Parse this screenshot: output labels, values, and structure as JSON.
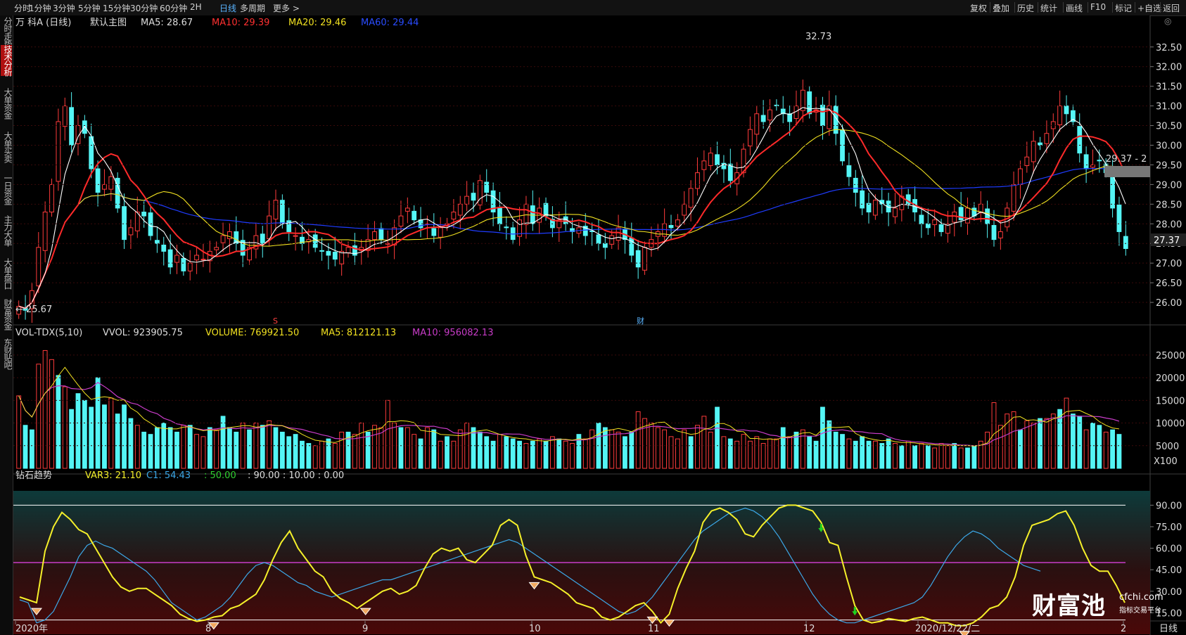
{
  "toolbar": {
    "left_items": [
      "分时",
      "1分钟",
      "3分钟",
      "5分钟",
      "15分钟",
      "30分钟",
      "60分钟",
      "2H",
      "日线",
      "多周期",
      "更多 >"
    ],
    "active": "日线",
    "right_items": [
      "复权",
      "叠加",
      "历史",
      "统计",
      "画线",
      "F10",
      "标记",
      "+自选",
      "返回"
    ]
  },
  "sidebar": [
    "分时走势",
    "技术分析",
    "大单资金",
    "大单买卖",
    "一日资金",
    "主力大单",
    "大单盘口",
    "财富资金",
    "东财贴吧"
  ],
  "sidebar_active": "技术分析",
  "main_header": {
    "stock": "万 科A (日线)",
    "template": "默认主图",
    "ma5": "MA5: 28.67",
    "ma10": "MA10: 29.39",
    "ma20": "MA20: 29.46",
    "ma60": "MA60: 29.44"
  },
  "price_annotations": {
    "high": "32.73",
    "low": "25.67",
    "current": "27.37",
    "range_label": "29.37 - 2",
    "event_s": "S",
    "event_cai": "财"
  },
  "price_axis": [
    "32.50",
    "32.00",
    "31.50",
    "31.00",
    "30.50",
    "30.00",
    "29.50",
    "29.00",
    "28.50",
    "28.00",
    "27.50",
    "27.00",
    "26.50",
    "26.00"
  ],
  "vol_header": {
    "name": "VOL-TDX(5,10)",
    "vvol": "VVOL: 923905.75",
    "volume": "VOLUME: 769921.50",
    "ma5": "MA5: 812121.13",
    "ma10": "MA10: 956082.13"
  },
  "vol_axis": [
    "25000",
    "20000",
    "15000",
    "10000",
    "5000"
  ],
  "vol_unit": "X100",
  "ind_header": {
    "name": "钻石趋势",
    "var3": "VAR3: 21.10",
    "c1": "C1: 54.43",
    "rest_green": ": 50.00",
    "rest_white": ": 90.00 : 10.00 : 0.00"
  },
  "ind_axis": [
    "90.00",
    "75.00",
    "60.00",
    "45.00",
    "30.00",
    "15.00"
  ],
  "date_axis": [
    "2020年",
    "8",
    "9",
    "10",
    "11",
    "12",
    "2020/12/22/二",
    "2"
  ],
  "date_axis_right": "日线",
  "logo": {
    "brand": "财富池",
    "domain": "cfchi.com",
    "tagline": "指标交易平台"
  },
  "colors": {
    "up": "#ff3b3b",
    "down": "#54f5f5",
    "ma5": "#ffffff",
    "ma10": "#ff2a2a",
    "ma20": "#f0e020",
    "ma60": "#1f3cff",
    "var3": "#f5f02a",
    "c1": "#3ca8e8",
    "vol_ma10": "#c83cc8"
  },
  "chart_data": [
    {
      "type": "candlestick",
      "title": "万 科A (日线)",
      "y_range": [
        25.5,
        32.8
      ],
      "highest": 32.73,
      "lowest": 25.67,
      "last_close": 27.37,
      "overlays": [
        "MA5",
        "MA10",
        "MA20",
        "MA60"
      ],
      "closes": [
        25.9,
        25.8,
        26.3,
        27.4,
        28.3,
        29.0,
        30.6,
        31.0,
        30.0,
        30.5,
        30.3,
        29.4,
        28.8,
        29.0,
        29.2,
        28.4,
        27.6,
        27.9,
        28.3,
        28.2,
        27.7,
        27.5,
        27.3,
        26.9,
        27.2,
        26.8,
        27.0,
        27.2,
        27.1,
        27.3,
        27.4,
        27.7,
        27.8,
        27.5,
        27.2,
        27.4,
        27.7,
        27.5,
        28.2,
        28.6,
        28.0,
        27.8,
        27.7,
        27.5,
        27.6,
        27.4,
        27.3,
        27.2,
        27.1,
        27.3,
        27.4,
        27.2,
        27.4,
        27.6,
        27.8,
        27.6,
        27.5,
        27.9,
        28.2,
        28.4,
        28.1,
        27.9,
        28.0,
        27.7,
        27.9,
        28.0,
        28.3,
        28.5,
        28.7,
        28.6,
        29.1,
        28.8,
        28.3,
        28.0,
        27.9,
        27.6,
        28.1,
        28.5,
        28.0,
        28.4,
        28.2,
        27.9,
        28.1,
        28.0,
        27.8,
        27.9,
        27.7,
        27.8,
        27.5,
        27.4,
        27.7,
        27.9,
        27.6,
        27.2,
        26.9,
        27.4,
        27.6,
        27.8,
        28.0,
        27.9,
        28.1,
        28.5,
        28.9,
        29.3,
        29.6,
        29.8,
        29.5,
        29.4,
        29.1,
        29.3,
        29.9,
        30.4,
        30.8,
        30.6,
        30.9,
        31.0,
        30.8,
        30.6,
        31.0,
        31.4,
        30.8,
        30.9,
        30.5,
        31.0,
        30.3,
        29.6,
        29.2,
        28.8,
        28.4,
        28.3,
        28.6,
        28.5,
        28.3,
        28.4,
        28.7,
        28.5,
        28.3,
        28.0,
        27.9,
        28.1,
        27.8,
        28.0,
        28.3,
        28.1,
        28.4,
        28.2,
        28.5,
        28.0,
        27.6,
        27.8,
        28.4,
        29.0,
        29.4,
        29.7,
        30.1,
        30.0,
        30.3,
        30.6,
        31.0,
        30.8,
        30.6,
        29.8,
        29.4,
        29.5,
        29.6,
        29.3,
        28.4,
        27.8,
        27.37
      ],
      "events": [
        "S",
        "财"
      ]
    },
    {
      "type": "bar",
      "title": "VOL-TDX(5,10)",
      "y_range": [
        0,
        27000
      ],
      "values": [
        16000,
        9500,
        8500,
        23000,
        26000,
        24000,
        20500,
        18000,
        13000,
        16500,
        15000,
        13500,
        20000,
        14000,
        15500,
        12000,
        14000,
        11000,
        9500,
        8000,
        7500,
        9000,
        10000,
        9000,
        8000,
        9500,
        9500,
        7500,
        7000,
        9000,
        8500,
        11500,
        9000,
        8000,
        10000,
        8500,
        10000,
        9500,
        10500,
        9000,
        8000,
        7000,
        7500,
        6000,
        5500,
        5000,
        6000,
        6500,
        5500,
        8000,
        8000,
        7500,
        10000,
        8000,
        9500,
        9000,
        15000,
        10000,
        9000,
        9000,
        7500,
        6500,
        9000,
        8500,
        6000,
        7000,
        6000,
        8500,
        10000,
        9000,
        8000,
        7000,
        6000,
        7500,
        7000,
        6500,
        6000,
        5500,
        6000,
        6500,
        6000,
        7000,
        6500,
        6000,
        5500,
        7500,
        6500,
        8500,
        10000,
        9000,
        8500,
        8000,
        7000,
        8000,
        12500,
        11000,
        10000,
        9000,
        8500,
        7000,
        6500,
        8500,
        7000,
        9500,
        11500,
        8000,
        13500,
        7000,
        6500,
        6000,
        7500,
        6000,
        7000,
        5500,
        6500,
        6500,
        9000,
        7000,
        8000,
        8500,
        7000,
        6000,
        13500,
        10500,
        8000,
        7500,
        6500,
        6000,
        7000,
        6000,
        6000,
        5500,
        6500,
        5500,
        5000,
        6000,
        5000,
        5500,
        5000,
        4500,
        5500,
        5000,
        5500,
        4500,
        4500,
        5000,
        6000,
        8000,
        14500,
        9500,
        12000,
        12500,
        8500,
        10500,
        10000,
        11000,
        11000,
        12000,
        13000,
        15500,
        12000,
        11500,
        8500,
        10000,
        9500,
        8000,
        8500,
        7500
      ],
      "up_flags": [
        1,
        0,
        0,
        1,
        1,
        1,
        0,
        1,
        0,
        0,
        0,
        0,
        0,
        0,
        1,
        0,
        0,
        0,
        1,
        0,
        0,
        0,
        0,
        0,
        0,
        1,
        0,
        1,
        1,
        0,
        1,
        0,
        0,
        0,
        1,
        0,
        1,
        0,
        1,
        0,
        0,
        0,
        0,
        0,
        0,
        1,
        1,
        0,
        1,
        1,
        0,
        1,
        1,
        0,
        1,
        1,
        1,
        1,
        0,
        1,
        1,
        0,
        1,
        0,
        1,
        0,
        1,
        1,
        1,
        0,
        0,
        0,
        0,
        1,
        0,
        0,
        0,
        1,
        0,
        1,
        0,
        1,
        0,
        1,
        1,
        0,
        1,
        1,
        0,
        0,
        1,
        1,
        0,
        0,
        1,
        1,
        1,
        1,
        1,
        1,
        1,
        1,
        0,
        1,
        1,
        1,
        0,
        1,
        0,
        1,
        1,
        1,
        1,
        1,
        1,
        1,
        0,
        1,
        0,
        1,
        0,
        0,
        0,
        0,
        0,
        0,
        1,
        0,
        0,
        0,
        1,
        0,
        0,
        1,
        0,
        1,
        0,
        1,
        0,
        1,
        1,
        1,
        0,
        1,
        0,
        0,
        1,
        1,
        1,
        1,
        1,
        1,
        0,
        1,
        1,
        0,
        1,
        1,
        0,
        1,
        0,
        0,
        1,
        0,
        0,
        1,
        0
      ],
      "ma5_line": "VOLUME MA5",
      "ma10_line": "VOLUME MA10"
    },
    {
      "type": "line",
      "title": "钻石趋势",
      "y_range": [
        0,
        100
      ],
      "reference_lines": [
        90,
        50,
        10
      ],
      "series": [
        {
          "name": "VAR3",
          "values": [
            26,
            24,
            22,
            58,
            75,
            85,
            80,
            73,
            70,
            60,
            50,
            40,
            33,
            30,
            32,
            32,
            28,
            24,
            20,
            14,
            11,
            9,
            10,
            12,
            13,
            18,
            20,
            24,
            28,
            38,
            52,
            64,
            72,
            60,
            52,
            44,
            40,
            30,
            25,
            22,
            18,
            22,
            26,
            30,
            32,
            28,
            30,
            34,
            46,
            56,
            60,
            58,
            60,
            52,
            50,
            56,
            62,
            76,
            80,
            76,
            55,
            40,
            38,
            36,
            32,
            28,
            22,
            20,
            18,
            12,
            10,
            12,
            16,
            20,
            22,
            16,
            8,
            14,
            32,
            46,
            58,
            78,
            86,
            88,
            85,
            80,
            70,
            68,
            76,
            82,
            88,
            90,
            90,
            88,
            86,
            78,
            64,
            62,
            40,
            20,
            10,
            8,
            9,
            11,
            10,
            9,
            11,
            12,
            10,
            8,
            8,
            6,
            6,
            8,
            12,
            18,
            20,
            26,
            40,
            62,
            76,
            78,
            80,
            84,
            86,
            76,
            60,
            48,
            44,
            44,
            34,
            22
          ]
        },
        {
          "name": "C1",
          "values": [
            24,
            22,
            8,
            10,
            16,
            28,
            40,
            54,
            62,
            65,
            62,
            60,
            56,
            52,
            48,
            44,
            38,
            30,
            22,
            18,
            14,
            10,
            12,
            16,
            20,
            26,
            34,
            42,
            48,
            50,
            48,
            44,
            40,
            36,
            34,
            30,
            28,
            26,
            28,
            30,
            32,
            34,
            36,
            38,
            38,
            40,
            42,
            44,
            46,
            48,
            50,
            52,
            54,
            56,
            58,
            60,
            62,
            64,
            66,
            64,
            60,
            56,
            52,
            48,
            44,
            40,
            36,
            32,
            28,
            24,
            20,
            16,
            14,
            16,
            20,
            26,
            34,
            42,
            50,
            58,
            66,
            72,
            76,
            80,
            84,
            86,
            88,
            86,
            82,
            76,
            68,
            58,
            48,
            38,
            28,
            20,
            14,
            10,
            8,
            8,
            10,
            12,
            14,
            16,
            18,
            20,
            22,
            26,
            34,
            44,
            54,
            62,
            68,
            72,
            70,
            66,
            60,
            56,
            52,
            48,
            46,
            44
          ]
        }
      ],
      "markers": [
        "buy diamonds near lows",
        "green down arrows near highs"
      ]
    }
  ]
}
